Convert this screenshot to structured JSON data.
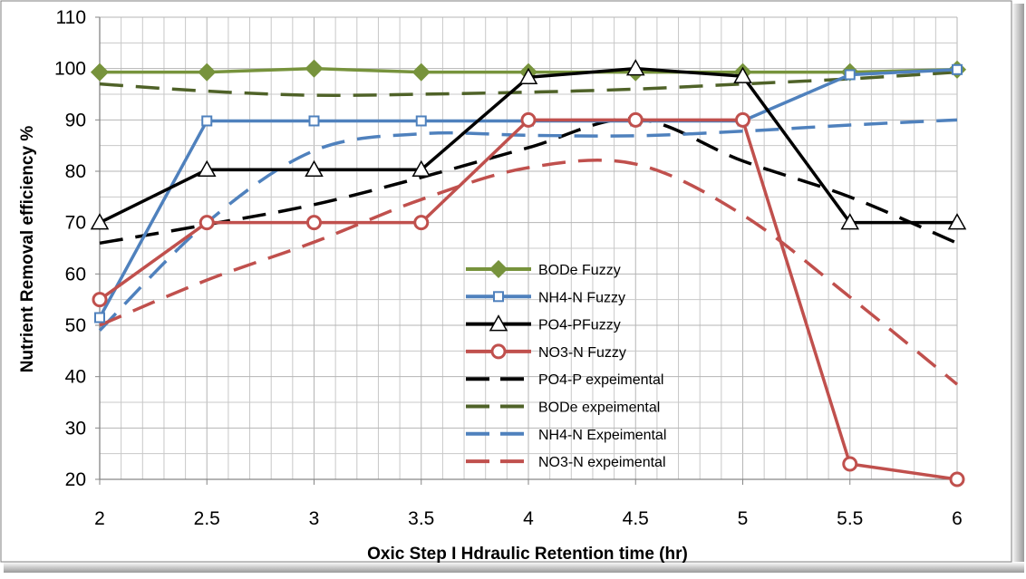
{
  "chart_data": {
    "type": "line",
    "title": "",
    "xlabel": "Oxic Step I Hdraulic Retention time (hr)",
    "ylabel": "Nutrient Removal efficiency %",
    "x": [
      2,
      2.5,
      3,
      3.5,
      4,
      4.5,
      5,
      5.5,
      6
    ],
    "x_tick_labels": [
      "2",
      "2.5",
      "3",
      "3.5",
      "4",
      "4.5",
      "5",
      "5.5",
      "6"
    ],
    "xlim": [
      2,
      6
    ],
    "ylim": [
      20,
      110
    ],
    "y_ticks": [
      20,
      30,
      40,
      50,
      60,
      70,
      80,
      90,
      100,
      110
    ],
    "grid": true,
    "legend_position": "center-bottom",
    "series": [
      {
        "name": "BODe Fuzzy",
        "color": "#77933C",
        "dash": "solid",
        "marker": "diamond",
        "values": [
          99.3,
          99.3,
          100,
          99.3,
          99.3,
          99.3,
          99.3,
          99.3,
          99.8
        ]
      },
      {
        "name": "NH4-N Fuzzy",
        "color": "#4F81BD",
        "dash": "solid",
        "marker": "square",
        "values": [
          51.5,
          89.8,
          89.8,
          89.8,
          89.8,
          89.8,
          89.8,
          98.8,
          99.8
        ]
      },
      {
        "name": "PO4-PFuzzy",
        "color": "#000000",
        "dash": "solid",
        "marker": "triangle",
        "values": [
          70,
          80.3,
          80.3,
          80.3,
          98.3,
          100,
          98.5,
          70,
          70
        ]
      },
      {
        "name": "NO3-N Fuzzy",
        "color": "#C0504D",
        "dash": "solid",
        "marker": "circle",
        "values": [
          55,
          70,
          70,
          70,
          90,
          90,
          90,
          23,
          20
        ]
      },
      {
        "name": "PO4-P  expeimental",
        "color": "#000000",
        "dash": "dashed",
        "marker": "none",
        "values": [
          66,
          69.6,
          73.5,
          78.8,
          84.6,
          90.2,
          82,
          75,
          66
        ]
      },
      {
        "name": "BODe expeimental",
        "color": "#4F6228",
        "dash": "dashed",
        "marker": "none",
        "values": [
          97,
          95.6,
          94.8,
          95,
          95.4,
          96,
          97,
          98,
          99.3
        ]
      },
      {
        "name": "NH4-N Expeimental",
        "color": "#4F81BD",
        "dash": "dashed",
        "marker": "none",
        "values": [
          49,
          70,
          84,
          87.3,
          87,
          86.9,
          87.8,
          89,
          90
        ]
      },
      {
        "name": "NO3-N expeimental",
        "color": "#C0504D",
        "dash": "dashed",
        "marker": "none",
        "values": [
          50,
          58.8,
          66.2,
          74.5,
          80.7,
          81.4,
          71.5,
          55.5,
          38.5
        ]
      }
    ]
  }
}
